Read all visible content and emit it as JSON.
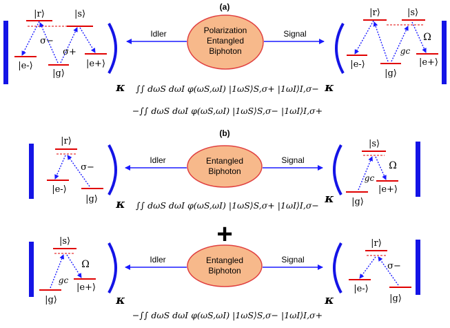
{
  "panel_a": {
    "label": "(a)",
    "source": "Polarization Entangled Biphoton",
    "source_lines": [
      "Polarization",
      "Entangled",
      "Biphoton"
    ],
    "idler": "Idler",
    "signal": "Signal",
    "formula_line1": "∫∫ dωS dωI φ(ωS,ωI) |1ωS⟩S,σ+ |1ωI⟩I,σ−",
    "formula_line2": "−∫∫ dωS dωI φ(ωS,ωI) |1ωS⟩S,σ− |1ωI⟩I,σ+",
    "left_atom": {
      "r": "|r⟩",
      "s": "|s⟩",
      "em": "|e-⟩",
      "g": "|g⟩",
      "ep": "|e+⟩",
      "sigma_minus": "σ−",
      "sigma_plus": "σ+"
    },
    "right_atom": {
      "r": "|r⟩",
      "s": "|s⟩",
      "em": "|e-⟩",
      "g": "|g⟩",
      "ep": "|e+⟩",
      "omega": "Ω",
      "gc": "gc"
    }
  },
  "panel_b": {
    "label": "(b)",
    "plus": "+",
    "row1": {
      "source_lines": [
        "Entangled",
        "Biphoton"
      ],
      "idler": "Idler",
      "signal": "Signal",
      "formula": "∫∫ dωS dωI φ(ωS,ωI) |1ωS⟩S,σ+ |1ωI⟩I,σ−",
      "left_atom": {
        "r": "|r⟩",
        "em": "|e-⟩",
        "g": "|g⟩",
        "sigma_minus": "σ−"
      },
      "right_atom": {
        "s": "|s⟩",
        "g": "|g⟩",
        "ep": "|e+⟩",
        "omega": "Ω",
        "gc": "gc"
      }
    },
    "row2": {
      "source_lines": [
        "Entangled",
        "Biphoton"
      ],
      "idler": "Idler",
      "signal": "Signal",
      "formula": "−∫∫ dωS dωI φ(ωS,ωI) |1ωS⟩S,σ− |1ωI⟩I,σ+",
      "left_atom": {
        "s": "|s⟩",
        "g": "|g⟩",
        "ep": "|e+⟩",
        "omega": "Ω",
        "gc": "gc"
      },
      "right_atom": {
        "r": "|r⟩",
        "em": "|e-⟩",
        "g": "|g⟩",
        "sigma_minus": "σ−"
      }
    }
  },
  "kappa": "κ",
  "colors": {
    "level": "#e00000",
    "transition": "#1a1aff",
    "mirror": "#1414e6",
    "source_fill": "#f7b98b",
    "source_stroke": "#e04040"
  }
}
